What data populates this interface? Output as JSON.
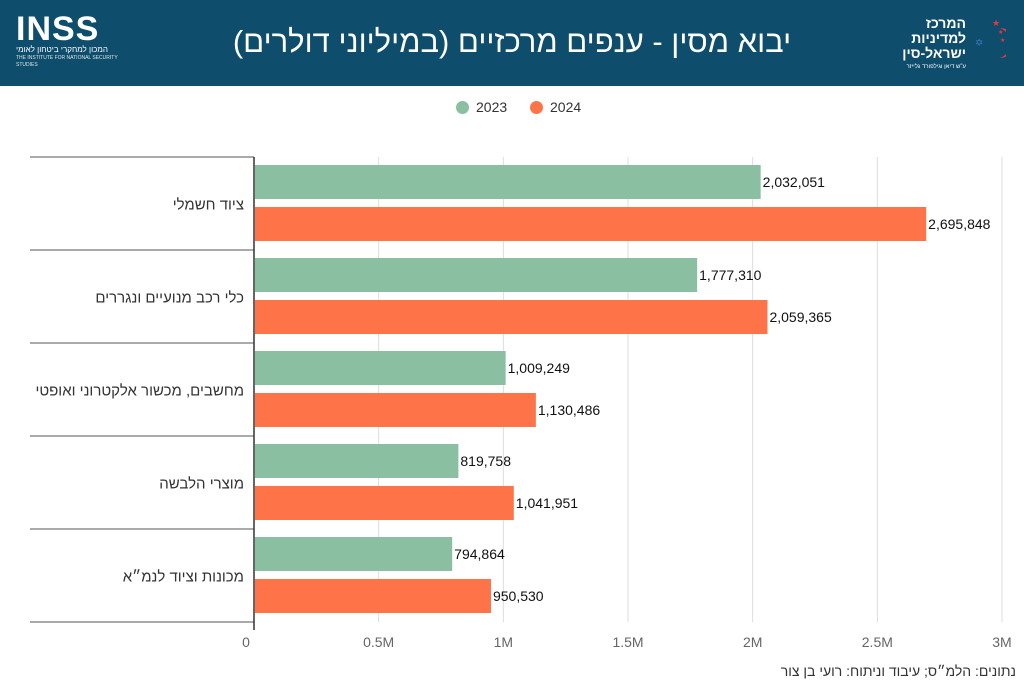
{
  "header": {
    "title": "יבוא מסין - ענפים מרכזיים (במיליוני דולרים)",
    "logo_left": {
      "wordmark": "INSS",
      "subtitle": "המכון למחקרי ביטחון לאומי",
      "tagline": "THE INSTITUTE FOR NATIONAL SECURITY STUDIES"
    },
    "logo_right": {
      "line1": "המרכז",
      "line2": "למדיניות",
      "line3": "ישראל-סין",
      "caption": "ע\"ש דיאן וגילפורד גלייזר"
    }
  },
  "colors": {
    "header_bg": "#0e4d6b",
    "series_2023": "#8bbfa2",
    "series_2024": "#ff7348",
    "grid": "#dddddd",
    "axis": "#333333"
  },
  "chart_data": {
    "type": "bar",
    "orientation": "horizontal",
    "title": "יבוא מסין - ענפים מרכזיים (במיליוני דולרים)",
    "categories": [
      "ציוד חשמלי",
      "כלי רכב מנועיים ונגררים",
      "מחשבים, מכשור אלקטרוני ואופטי",
      "מוצרי הלבשה",
      "מכונות וציוד לנמ״א"
    ],
    "series": [
      {
        "name": "2023",
        "color": "#8bbfa2",
        "values": [
          2032051,
          1777310,
          1009249,
          819758,
          794864
        ],
        "labels": [
          "2,032,051",
          "1,777,310",
          "1,009,249",
          "819,758",
          "794,864"
        ]
      },
      {
        "name": "2024",
        "color": "#ff7348",
        "values": [
          2695848,
          2059365,
          1130486,
          1041951,
          950530
        ],
        "labels": [
          "2,695,848",
          "2,059,365",
          "1,130,486",
          "1,041,951",
          "950,530"
        ]
      }
    ],
    "xlim": [
      0,
      3000000
    ],
    "xticks": [
      0,
      500000,
      1000000,
      1500000,
      2000000,
      2500000,
      3000000
    ],
    "xtick_labels": [
      "0",
      "0.5M",
      "1M",
      "1.5M",
      "2M",
      "2.5M",
      "3M"
    ],
    "grid": true,
    "legend_position": "top-center"
  },
  "source_note": "נתונים: הלמ״ס; עיבוד וניתוח: רועי בן צור"
}
